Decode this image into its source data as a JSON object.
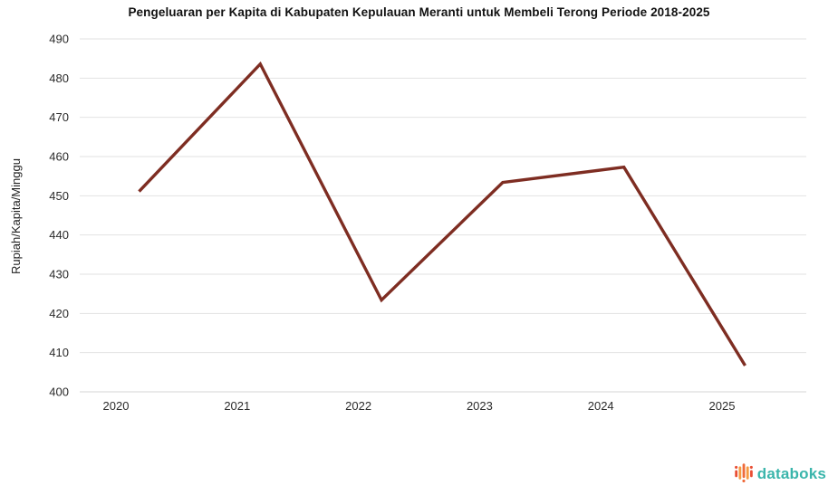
{
  "page": {
    "title": "Pengeluaran per Kapita di Kabupaten Kepulauan Meranti untuk Membeli Terong Periode 2018-2025"
  },
  "chart_data": {
    "type": "line",
    "title": "Pengeluaran per Kapita di Kabupaten Kepulauan Meranti untuk Membeli Terong Periode 2018-2025",
    "xlabel": "",
    "ylabel": "Rupiah/Kapita/Minggu",
    "categories": [
      "2020",
      "2021",
      "2022",
      "2023",
      "2024",
      "2025"
    ],
    "series": [
      {
        "name": "Pengeluaran per kapita terong",
        "values": [
          451.1,
          483.6,
          423.4,
          453.4,
          457.3,
          406.7
        ]
      }
    ],
    "ylim": [
      400,
      490
    ],
    "yticks": [
      400,
      410,
      420,
      430,
      440,
      450,
      460,
      470,
      480,
      490
    ],
    "grid": true,
    "legend_position": "none",
    "line_color": "#7e2d22"
  },
  "branding": {
    "wordmark": "databoks",
    "wordmark_color": "#3ab5ab",
    "icon_colors": [
      "#e94f35",
      "#f59b41",
      "#ef6a3a"
    ]
  },
  "colors": {
    "background": "#ffffff",
    "grid": "#e2e2e2",
    "axis_line": "#d5d5d5",
    "axis_text": "#2b2b2b"
  }
}
